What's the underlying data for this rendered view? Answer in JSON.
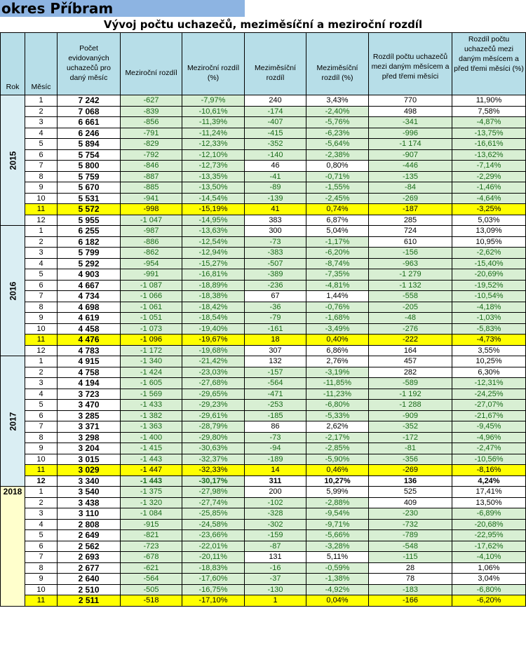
{
  "header": {
    "title": "okres Příbram",
    "subtitle": "Vývoj počtu uchazečů, meziměsíční a meziroční rozdíl"
  },
  "columns": [
    "Rok",
    "Měsíc",
    "Počet evidovaných uchazečů pro daný měsíc",
    "Meziroční rozdíl",
    "Meziroční rozdíl (%)",
    "Meziměsíční rozdíl",
    "Meziměsíční rozdíl (%)",
    "Rozdíl počtu uchazečů mezi daným měsícem a před třemi měsíci",
    "Rozdíl počtu uchazečů mezi daným měsícem a před třemi měsíci (%)"
  ],
  "colors": {
    "header_bg": "#b7dee8",
    "title_bg": "#8db4e2",
    "negative_bg": "#d8efd3",
    "highlight": "#ffff00"
  },
  "years": [
    {
      "year": "2015",
      "rows": [
        [
          "1",
          "7 242",
          "-627",
          "-7,97%",
          "240",
          "3,43%",
          "770",
          "11,90%"
        ],
        [
          "2",
          "7 068",
          "-839",
          "-10,61%",
          "-174",
          "-2,40%",
          "498",
          "7,58%"
        ],
        [
          "3",
          "6 661",
          "-856",
          "-11,39%",
          "-407",
          "-5,76%",
          "-341",
          "-4,87%"
        ],
        [
          "4",
          "6 246",
          "-791",
          "-11,24%",
          "-415",
          "-6,23%",
          "-996",
          "-13,75%"
        ],
        [
          "5",
          "5 894",
          "-829",
          "-12,33%",
          "-352",
          "-5,64%",
          "-1 174",
          "-16,61%"
        ],
        [
          "6",
          "5 754",
          "-792",
          "-12,10%",
          "-140",
          "-2,38%",
          "-907",
          "-13,62%"
        ],
        [
          "7",
          "5 800",
          "-846",
          "-12,73%",
          "46",
          "0,80%",
          "-446",
          "-7,14%"
        ],
        [
          "8",
          "5 759",
          "-887",
          "-13,35%",
          "-41",
          "-0,71%",
          "-135",
          "-2,29%"
        ],
        [
          "9",
          "5 670",
          "-885",
          "-13,50%",
          "-89",
          "-1,55%",
          "-84",
          "-1,46%"
        ],
        [
          "10",
          "5 531",
          "-941",
          "-14,54%",
          "-139",
          "-2,45%",
          "-269",
          "-4,64%"
        ],
        [
          "11",
          "5 572",
          "-998",
          "-15,19%",
          "41",
          "0,74%",
          "-187",
          "-3,25%"
        ],
        [
          "12",
          "5 955",
          "-1 047",
          "-14,95%",
          "383",
          "6,87%",
          "285",
          "5,03%"
        ]
      ]
    },
    {
      "year": "2016",
      "rows": [
        [
          "1",
          "6 255",
          "-987",
          "-13,63%",
          "300",
          "5,04%",
          "724",
          "13,09%"
        ],
        [
          "2",
          "6 182",
          "-886",
          "-12,54%",
          "-73",
          "-1,17%",
          "610",
          "10,95%"
        ],
        [
          "3",
          "5 799",
          "-862",
          "-12,94%",
          "-383",
          "-6,20%",
          "-156",
          "-2,62%"
        ],
        [
          "4",
          "5 292",
          "-954",
          "-15,27%",
          "-507",
          "-8,74%",
          "-963",
          "-15,40%"
        ],
        [
          "5",
          "4 903",
          "-991",
          "-16,81%",
          "-389",
          "-7,35%",
          "-1 279",
          "-20,69%"
        ],
        [
          "6",
          "4 667",
          "-1 087",
          "-18,89%",
          "-236",
          "-4,81%",
          "-1 132",
          "-19,52%"
        ],
        [
          "7",
          "4 734",
          "-1 066",
          "-18,38%",
          "67",
          "1,44%",
          "-558",
          "-10,54%"
        ],
        [
          "8",
          "4 698",
          "-1 061",
          "-18,42%",
          "-36",
          "-0,76%",
          "-205",
          "-4,18%"
        ],
        [
          "9",
          "4 619",
          "-1 051",
          "-18,54%",
          "-79",
          "-1,68%",
          "-48",
          "-1,03%"
        ],
        [
          "10",
          "4 458",
          "-1 073",
          "-19,40%",
          "-161",
          "-3,49%",
          "-276",
          "-5,83%"
        ],
        [
          "11",
          "4 476",
          "-1 096",
          "-19,67%",
          "18",
          "0,40%",
          "-222",
          "-4,73%"
        ],
        [
          "12",
          "4 783",
          "-1 172",
          "-19,68%",
          "307",
          "6,86%",
          "164",
          "3,55%"
        ]
      ]
    },
    {
      "year": "2017",
      "rows": [
        [
          "1",
          "4 915",
          "-1 340",
          "-21,42%",
          "132",
          "2,76%",
          "457",
          "10,25%"
        ],
        [
          "2",
          "4 758",
          "-1 424",
          "-23,03%",
          "-157",
          "-3,19%",
          "282",
          "6,30%"
        ],
        [
          "3",
          "4 194",
          "-1 605",
          "-27,68%",
          "-564",
          "-11,85%",
          "-589",
          "-12,31%"
        ],
        [
          "4",
          "3 723",
          "-1 569",
          "-29,65%",
          "-471",
          "-11,23%",
          "-1 192",
          "-24,25%"
        ],
        [
          "5",
          "3 470",
          "-1 433",
          "-29,23%",
          "-253",
          "-6,80%",
          "-1 288",
          "-27,07%"
        ],
        [
          "6",
          "3 285",
          "-1 382",
          "-29,61%",
          "-185",
          "-5,33%",
          "-909",
          "-21,67%"
        ],
        [
          "7",
          "3 371",
          "-1 363",
          "-28,79%",
          "86",
          "2,62%",
          "-352",
          "-9,45%"
        ],
        [
          "8",
          "3 298",
          "-1 400",
          "-29,80%",
          "-73",
          "-2,17%",
          "-172",
          "-4,96%"
        ],
        [
          "9",
          "3 204",
          "-1 415",
          "-30,63%",
          "-94",
          "-2,85%",
          "-81",
          "-2,47%"
        ],
        [
          "10",
          "3 015",
          "-1 443",
          "-32,37%",
          "-189",
          "-5,90%",
          "-356",
          "-10,56%"
        ],
        [
          "11",
          "3 029",
          "-1 447",
          "-32,33%",
          "14",
          "0,46%",
          "-269",
          "-8,16%"
        ],
        [
          "12",
          "3 340",
          "-1 443",
          "-30,17%",
          "311",
          "10,27%",
          "136",
          "4,24%"
        ]
      ]
    },
    {
      "year": "2018",
      "rows": [
        [
          "1",
          "3 540",
          "-1 375",
          "-27,98%",
          "200",
          "5,99%",
          "525",
          "17,41%"
        ],
        [
          "2",
          "3 438",
          "-1 320",
          "-27,74%",
          "-102",
          "-2,88%",
          "409",
          "13,50%"
        ],
        [
          "3",
          "3 110",
          "-1 084",
          "-25,85%",
          "-328",
          "-9,54%",
          "-230",
          "-6,89%"
        ],
        [
          "4",
          "2 808",
          "-915",
          "-24,58%",
          "-302",
          "-9,71%",
          "-732",
          "-20,68%"
        ],
        [
          "5",
          "2 649",
          "-821",
          "-23,66%",
          "-159",
          "-5,66%",
          "-789",
          "-22,95%"
        ],
        [
          "6",
          "2 562",
          "-723",
          "-22,01%",
          "-87",
          "-3,28%",
          "-548",
          "-17,62%"
        ],
        [
          "7",
          "2 693",
          "-678",
          "-20,11%",
          "131",
          "5,11%",
          "-115",
          "-4,10%"
        ],
        [
          "8",
          "2 677",
          "-621",
          "-18,83%",
          "-16",
          "-0,59%",
          "28",
          "1,06%"
        ],
        [
          "9",
          "2 640",
          "-564",
          "-17,60%",
          "-37",
          "-1,38%",
          "78",
          "3,04%"
        ],
        [
          "10",
          "2 510",
          "-505",
          "-16,75%",
          "-130",
          "-4,92%",
          "-183",
          "-6,80%"
        ],
        [
          "11",
          "2 511",
          "-518",
          "-17,10%",
          "1",
          "0,04%",
          "-166",
          "-6,20%"
        ]
      ]
    }
  ]
}
